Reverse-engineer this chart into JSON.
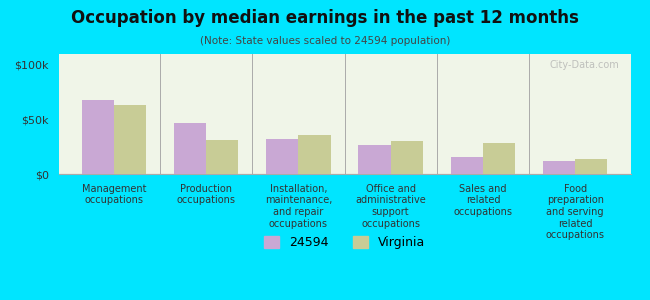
{
  "title": "Occupation by median earnings in the past 12 months",
  "subtitle": "(Note: State values scaled to 24594 population)",
  "categories": [
    "Management\noccupations",
    "Production\noccupations",
    "Installation,\nmaintenance,\nand repair\noccupations",
    "Office and\nadministrative\nsupport\noccupations",
    "Sales and\nrelated\noccupations",
    "Food\npreparation\nand serving\nrelated\noccupations"
  ],
  "values_24594": [
    68000,
    47000,
    32000,
    27000,
    16000,
    12000
  ],
  "values_virginia": [
    63000,
    31000,
    36000,
    30000,
    28000,
    14000
  ],
  "color_24594": "#c9a8d4",
  "color_virginia": "#c8cc96",
  "yticks": [
    0,
    50000,
    100000
  ],
  "ytick_labels": [
    "$0",
    "$50k",
    "$100k"
  ],
  "ylim": [
    0,
    110000
  ],
  "background_color": "#00e5ff",
  "plot_bg_top": "#f0f5e8",
  "plot_bg_bottom": "#ffffff",
  "watermark": "City-Data.com",
  "legend_label_24594": "24594",
  "legend_label_virginia": "Virginia",
  "bar_width": 0.35
}
